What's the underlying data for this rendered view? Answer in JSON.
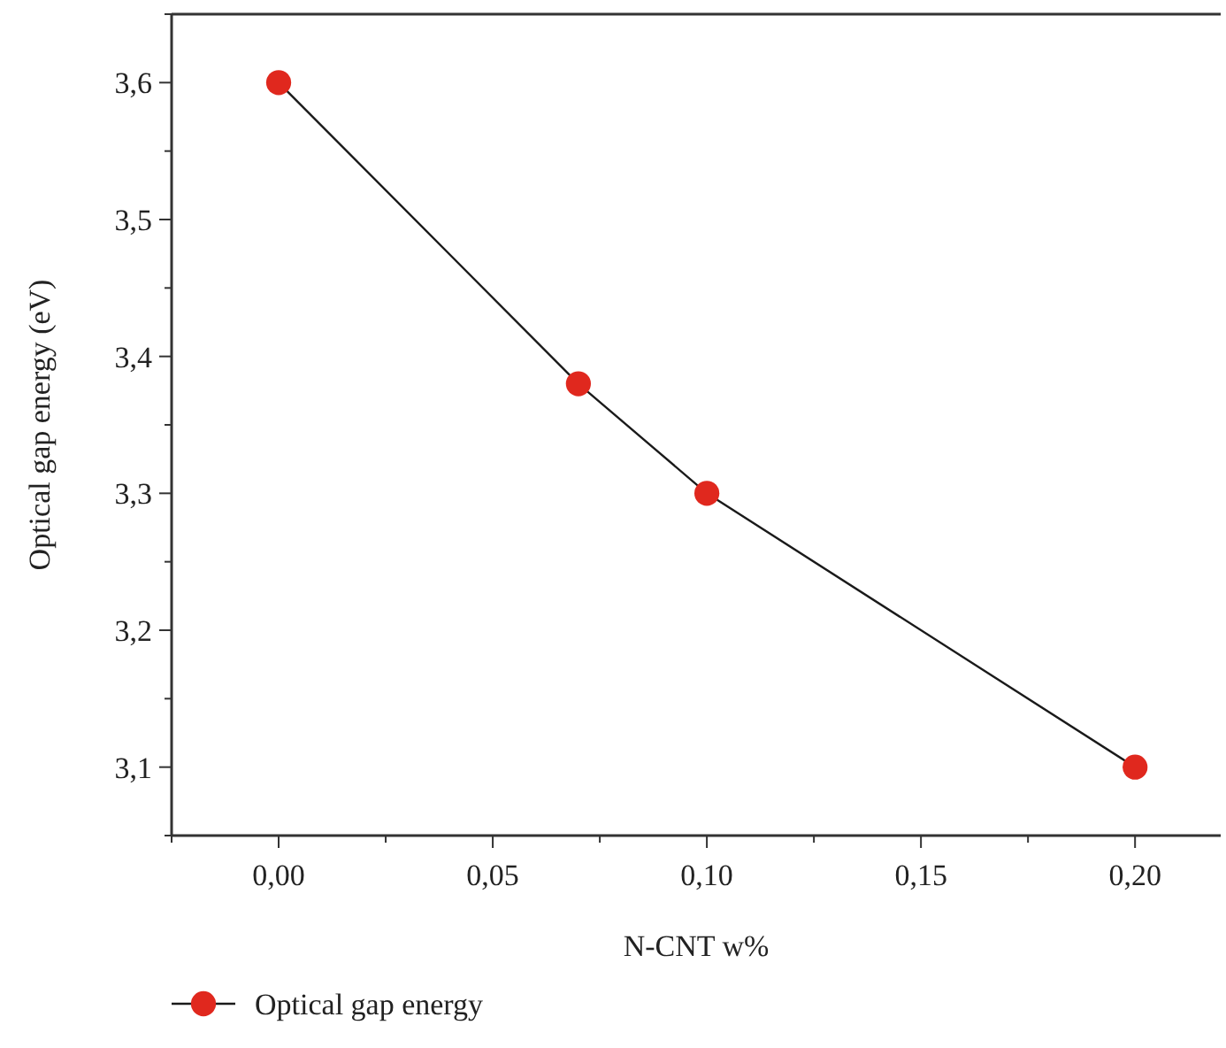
{
  "chart_data": {
    "type": "line",
    "xlabel": "N-CNT w%",
    "ylabel": "Optical gap energy (eV)",
    "x": [
      0,
      0.07,
      0.1,
      0.2
    ],
    "series": [
      {
        "name": "Optical gap energy",
        "color": "#e0281e",
        "values": [
          3.6,
          3.38,
          3.3,
          3.1
        ]
      }
    ],
    "xlim": [
      -0.025,
      0.22
    ],
    "xticks": [
      {
        "value": -0.025,
        "label": null
      },
      {
        "value": 0,
        "label": "0,00"
      },
      {
        "value": 0.025,
        "label": null
      },
      {
        "value": 0.05,
        "label": "0,05"
      },
      {
        "value": 0.075,
        "label": null
      },
      {
        "value": 0.1,
        "label": "0,10"
      },
      {
        "value": 0.125,
        "label": null
      },
      {
        "value": 0.15,
        "label": "0,15"
      },
      {
        "value": 0.175,
        "label": null
      },
      {
        "value": 0.2,
        "label": "0,20"
      }
    ],
    "ylim": [
      3.05,
      3.65
    ],
    "yticks": [
      {
        "value": 3.05,
        "label": null
      },
      {
        "value": 3.1,
        "label": "3,1"
      },
      {
        "value": 3.15,
        "label": null
      },
      {
        "value": 3.2,
        "label": "3,2"
      },
      {
        "value": 3.25,
        "label": null
      },
      {
        "value": 3.3,
        "label": "3,3"
      },
      {
        "value": 3.35,
        "label": null
      },
      {
        "value": 3.4,
        "label": "3,4"
      },
      {
        "value": 3.45,
        "label": null
      },
      {
        "value": 3.5,
        "label": "3,5"
      },
      {
        "value": 3.55,
        "label": null
      },
      {
        "value": 3.6,
        "label": "3,6"
      },
      {
        "value": 3.65,
        "label": null
      }
    ],
    "marker": "circle",
    "line_style": "solid",
    "legend": "bottom left",
    "grid": false
  }
}
